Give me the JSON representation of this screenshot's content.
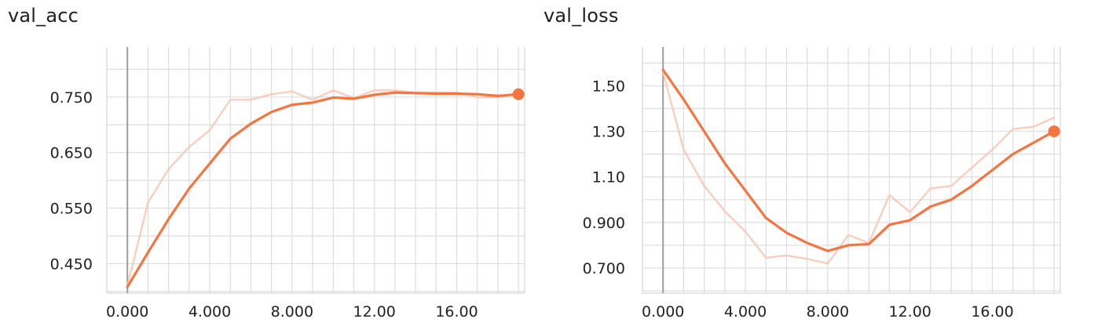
{
  "chart_data": [
    {
      "type": "line",
      "title": "val_acc",
      "xlabel": "",
      "ylabel": "",
      "xlim": [
        -1.0,
        19.3
      ],
      "ylim": [
        0.397,
        0.84
      ],
      "x_ticks": [
        0,
        4,
        8,
        12,
        16
      ],
      "x_tick_labels": [
        "0.000",
        "4.000",
        "8.000",
        "12.00",
        "16.00"
      ],
      "y_ticks": [
        0.45,
        0.55,
        0.65,
        0.75
      ],
      "y_tick_labels": [
        "0.450",
        "0.550",
        "0.650",
        "0.750"
      ],
      "grid": true,
      "colors": {
        "smoothed": "#f37542",
        "raw": "#f9c6b2",
        "grid": "#dddddd",
        "zero_line": "#9e9e9e"
      },
      "series": [
        {
          "values_x": [
            0,
            1,
            2,
            3,
            4,
            5,
            6,
            7,
            8,
            9,
            10,
            11,
            12,
            13,
            14,
            15,
            16,
            17,
            18,
            19
          ],
          "values": [
            0.41,
            0.56,
            0.62,
            0.66,
            0.69,
            0.745,
            0.745,
            0.755,
            0.76,
            0.745,
            0.762,
            0.748,
            0.762,
            0.762,
            0.758,
            0.758,
            0.758,
            0.75,
            0.75,
            0.755
          ]
        },
        {
          "values_x": [
            0,
            1,
            2,
            3,
            4,
            5,
            6,
            7,
            8,
            9,
            10,
            11,
            12,
            13,
            14,
            15,
            16,
            17,
            18,
            19
          ],
          "values": [
            0.408,
            0.47,
            0.53,
            0.585,
            0.63,
            0.675,
            0.702,
            0.723,
            0.736,
            0.74,
            0.749,
            0.747,
            0.754,
            0.758,
            0.757,
            0.756,
            0.756,
            0.755,
            0.752,
            0.755
          ]
        }
      ]
    },
    {
      "type": "line",
      "title": "val_loss",
      "xlabel": "",
      "ylabel": "",
      "xlim": [
        -1.0,
        19.3
      ],
      "ylim": [
        0.59,
        1.67
      ],
      "x_ticks": [
        0,
        4,
        8,
        12,
        16
      ],
      "x_tick_labels": [
        "0.000",
        "4.000",
        "8.000",
        "12.00",
        "16.00"
      ],
      "y_ticks": [
        0.7,
        0.9,
        1.1,
        1.3,
        1.5
      ],
      "y_tick_labels": [
        "0.700",
        "0.900",
        "1.10",
        "1.30",
        "1.50"
      ],
      "grid": true,
      "colors": {
        "smoothed": "#f37542",
        "raw": "#f9c6b2",
        "grid": "#dddddd",
        "zero_line": "#9e9e9e"
      },
      "series": [
        {
          "values_x": [
            0,
            1,
            2,
            3,
            4,
            5,
            6,
            7,
            8,
            9,
            10,
            11,
            12,
            13,
            14,
            15,
            16,
            17,
            18,
            19
          ],
          "values": [
            1.56,
            1.22,
            1.06,
            0.95,
            0.86,
            0.745,
            0.755,
            0.74,
            0.72,
            0.845,
            0.81,
            1.02,
            0.945,
            1.05,
            1.06,
            1.14,
            1.22,
            1.31,
            1.32,
            1.36
          ]
        },
        {
          "values_x": [
            0,
            1,
            2,
            3,
            4,
            5,
            6,
            7,
            8,
            9,
            10,
            11,
            12,
            13,
            14,
            15,
            16,
            17,
            18,
            19
          ],
          "values": [
            1.57,
            1.44,
            1.3,
            1.16,
            1.04,
            0.92,
            0.855,
            0.81,
            0.775,
            0.8,
            0.805,
            0.89,
            0.91,
            0.97,
            1.0,
            1.06,
            1.13,
            1.2,
            1.25,
            1.3
          ]
        }
      ]
    }
  ]
}
